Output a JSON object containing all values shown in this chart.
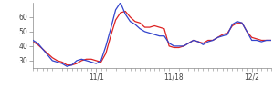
{
  "title": "",
  "ylim": [
    25,
    70
  ],
  "xlim": [
    0,
    49
  ],
  "yticks": [
    30,
    40,
    50,
    60
  ],
  "xtick_labels": [
    "11/1",
    "11/18",
    "12/2"
  ],
  "xtick_positions": [
    13,
    29,
    45
  ],
  "n_xticks_minor": 18,
  "blue_y": [
    44,
    42,
    38,
    34,
    30,
    29,
    28,
    26,
    27,
    30,
    31,
    30,
    29,
    28,
    30,
    40,
    52,
    65,
    70,
    62,
    57,
    55,
    52,
    50,
    49,
    48,
    47,
    47,
    42,
    40,
    40,
    40,
    42,
    44,
    43,
    41,
    43,
    44,
    46,
    47,
    48,
    55,
    57,
    56,
    50,
    44,
    44,
    43,
    44,
    44
  ],
  "red_y": [
    43,
    41,
    38,
    35,
    32,
    30,
    29,
    27,
    27,
    28,
    30,
    31,
    31,
    30,
    29,
    35,
    47,
    58,
    63,
    64,
    60,
    57,
    56,
    53,
    53,
    54,
    53,
    52,
    40,
    39,
    39,
    40,
    42,
    44,
    43,
    42,
    44,
    44,
    46,
    48,
    49,
    54,
    56,
    56,
    50,
    46,
    45,
    44,
    44,
    44
  ],
  "blue_color": "#3344cc",
  "red_color": "#dd2222",
  "bg_color": "#ffffff",
  "axis_color": "#888888",
  "tick_label_color": "#444444",
  "line_width": 0.9,
  "tick_fontsize": 5.5
}
